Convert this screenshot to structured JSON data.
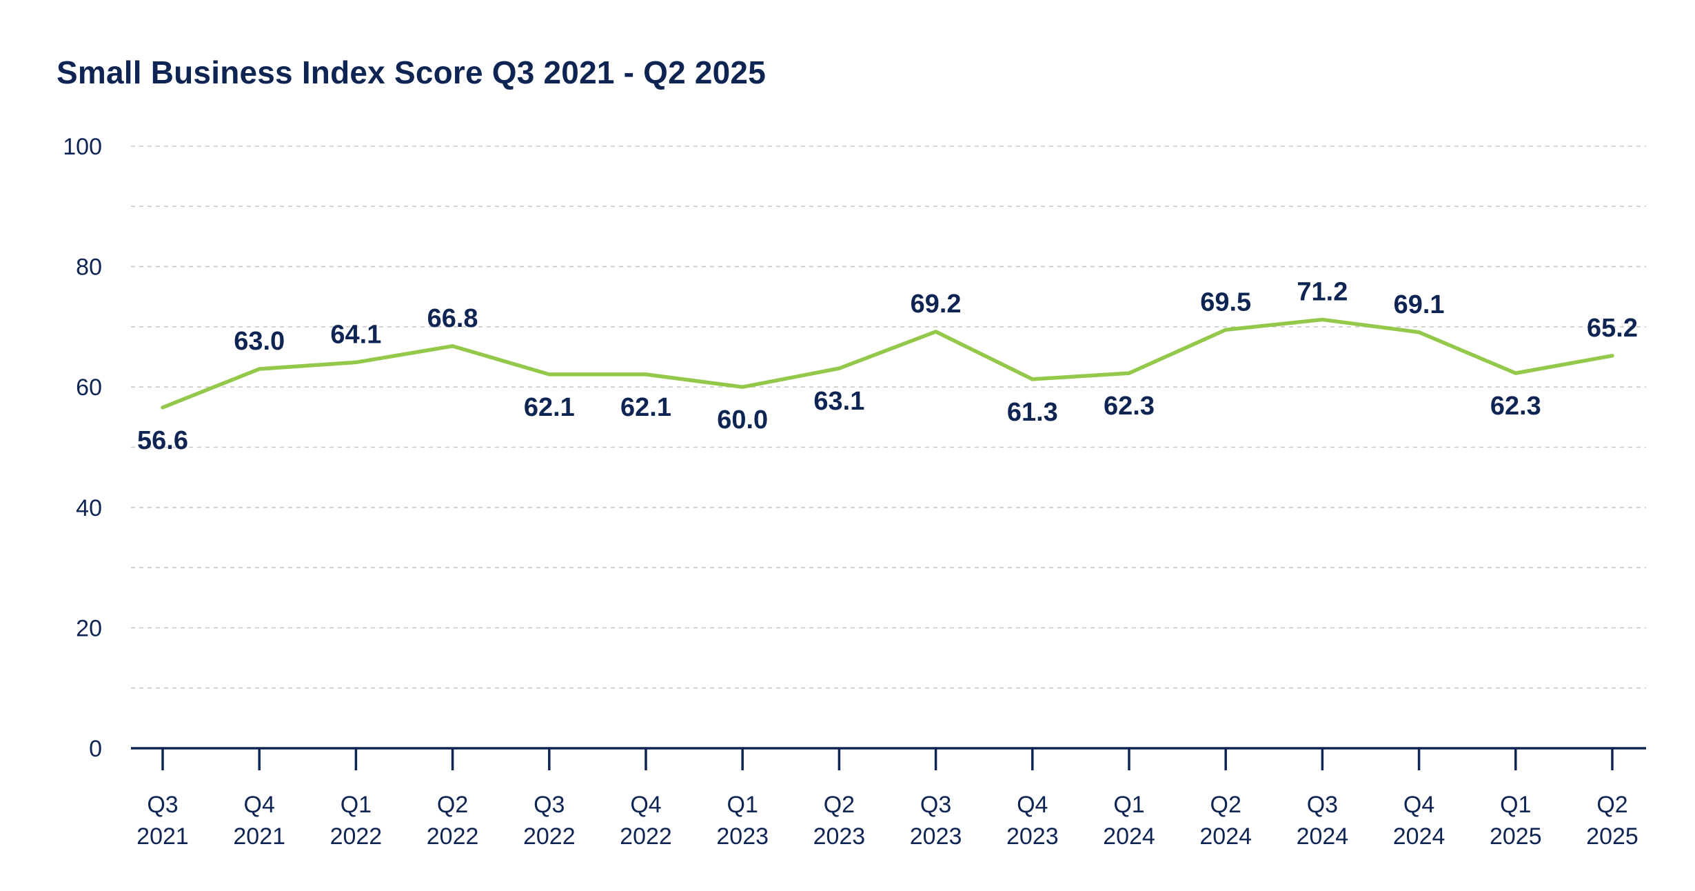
{
  "chart_data": {
    "type": "line",
    "title": "Small Business Index Score Q3 2021 - Q2 2025",
    "xlabel": "",
    "ylabel": "",
    "ylim": [
      0,
      100
    ],
    "yticks": [
      "0",
      "20",
      "40",
      "60",
      "80",
      "100"
    ],
    "grid": true,
    "categories": [
      [
        "Q3",
        "2021"
      ],
      [
        "Q4",
        "2021"
      ],
      [
        "Q1",
        "2022"
      ],
      [
        "Q2",
        "2022"
      ],
      [
        "Q3",
        "2022"
      ],
      [
        "Q4",
        "2022"
      ],
      [
        "Q1",
        "2023"
      ],
      [
        "Q2",
        "2023"
      ],
      [
        "Q3",
        "2023"
      ],
      [
        "Q4",
        "2023"
      ],
      [
        "Q1",
        "2024"
      ],
      [
        "Q2",
        "2024"
      ],
      [
        "Q3",
        "2024"
      ],
      [
        "Q4",
        "2024"
      ],
      [
        "Q1",
        "2025"
      ],
      [
        "Q2",
        "2025"
      ]
    ],
    "series": [
      {
        "values": [
          56.6,
          63.0,
          64.1,
          66.8,
          62.1,
          62.1,
          60.0,
          63.1,
          69.2,
          61.3,
          62.3,
          69.5,
          71.2,
          69.1,
          62.3,
          65.2
        ],
        "labels": [
          "56.6",
          "63.0",
          "64.1",
          "66.8",
          "62.1",
          "62.1",
          "60.0",
          "63.1",
          "69.2",
          "61.3",
          "62.3",
          "69.5",
          "71.2",
          "69.1",
          "62.3",
          "65.2"
        ],
        "label_position": [
          "below",
          "above",
          "above",
          "above",
          "below",
          "below",
          "below",
          "below",
          "above",
          "below",
          "below",
          "above",
          "above",
          "above",
          "below",
          "above"
        ],
        "color": "#94c84b"
      }
    ],
    "colors": {
      "text": "#0e2553",
      "axis": "#0e2553",
      "grid": "#c8c8c8",
      "line": "#94c84b"
    }
  }
}
